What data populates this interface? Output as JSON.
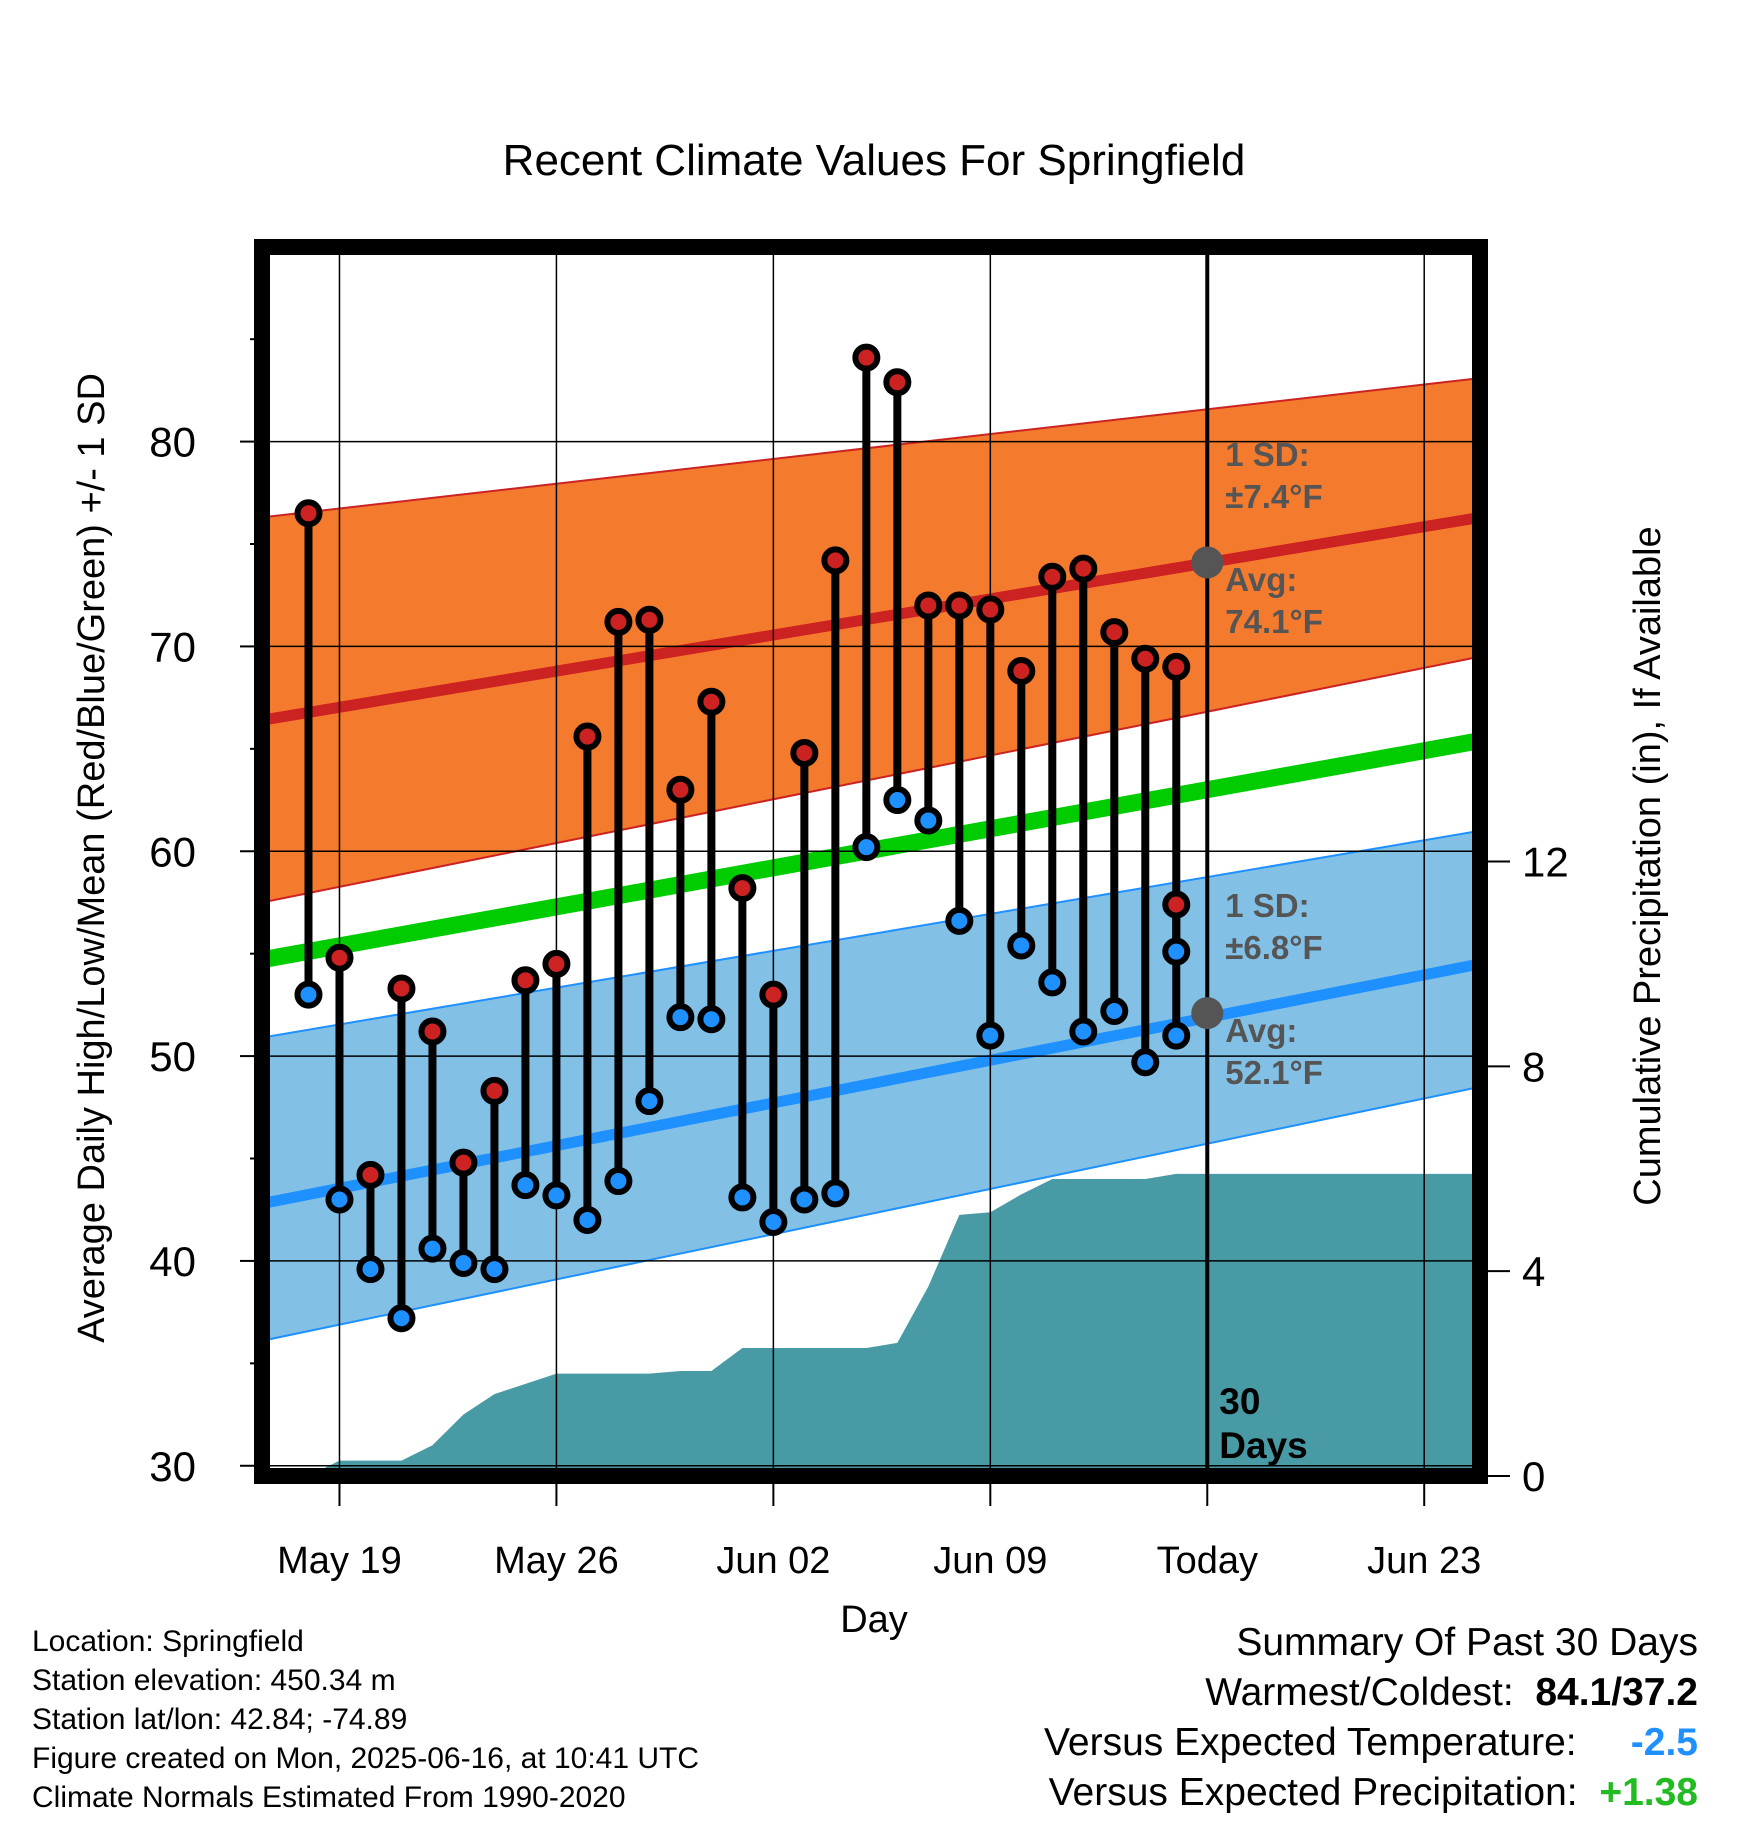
{
  "chart_data": {
    "type": "line",
    "title": "Recent Climate Values For Springfield",
    "xlabel": "Day",
    "ylabel": "Average Daily High/Low/Mean (Red/Blue/Green) +/- 1 SD",
    "y2label": "Cumulative Precipitation (in), If Available",
    "x_tick_labels": [
      "May 19",
      "May 26",
      "Jun 02",
      "Jun 09",
      "Today",
      "Jun 23"
    ],
    "x_tick_days": [
      2,
      9,
      16,
      23,
      30,
      37
    ],
    "xlim": [
      -0.5,
      38.8
    ],
    "ylim": [
      29.5,
      89.5
    ],
    "y_ticks": [
      30,
      40,
      50,
      60,
      70,
      80
    ],
    "y2lim": [
      0,
      24
    ],
    "y2_ticks": [
      0,
      4,
      8,
      12
    ],
    "grid": true,
    "today_day": 30,
    "today_marker_label": "30\nDays",
    "normals": {
      "high_avg": {
        "start": 66.4,
        "end": 76.3,
        "color": "#cc2222"
      },
      "high_sd_band": {
        "upper_start": 76.3,
        "upper_end": 83.1,
        "lower_start": 57.5,
        "lower_end": 69.5,
        "color": "#f47a2e"
      },
      "mean_avg": {
        "start": 54.7,
        "end": 65.4,
        "color": "#00cc00"
      },
      "low_avg": {
        "start": 42.8,
        "end": 54.5,
        "color": "#1e90ff"
      },
      "low_sd_band": {
        "upper_start": 50.9,
        "upper_end": 61.0,
        "lower_start": 36.1,
        "lower_end": 48.5,
        "color": "#82c0e6"
      }
    },
    "annotations": {
      "high": {
        "sd": "1 SD:",
        "sd_value": "±7.4°F",
        "avg": "Avg:",
        "avg_value": "74.1°F",
        "today_avg": 74.1
      },
      "low": {
        "sd": "1 SD:",
        "sd_value": "±6.8°F",
        "avg": "Avg:",
        "avg_value": "52.1°F",
        "today_avg": 52.1
      }
    },
    "series": [
      {
        "name": "High",
        "color": "#cc2222",
        "x": [
          1,
          2,
          3,
          4,
          5,
          6,
          7,
          8,
          9,
          10,
          11,
          12,
          13,
          14,
          15,
          16,
          17,
          18,
          19,
          20,
          21,
          22,
          23,
          24,
          25,
          26,
          27,
          28,
          29
        ],
        "values": [
          76.5,
          54.8,
          44.2,
          53.3,
          51.2,
          44.8,
          48.3,
          53.7,
          54.5,
          65.6,
          71.2,
          71.3,
          63.0,
          67.3,
          58.2,
          53.0,
          64.8,
          74.2,
          84.1,
          82.9,
          72.0,
          72.0,
          71.8,
          68.8,
          73.4,
          73.8,
          70.7,
          69.4,
          57.4
        ]
      },
      {
        "name": "Low",
        "color": "#1e90ff",
        "x": [
          1,
          2,
          3,
          4,
          5,
          6,
          7,
          8,
          9,
          10,
          11,
          12,
          13,
          14,
          15,
          16,
          17,
          18,
          19,
          20,
          21,
          22,
          23,
          24,
          25,
          26,
          27,
          28,
          29
        ],
        "values": [
          53.0,
          43.0,
          39.6,
          37.2,
          40.6,
          39.9,
          39.6,
          43.7,
          43.2,
          42.0,
          43.9,
          47.8,
          51.9,
          51.8,
          43.1,
          41.9,
          43.0,
          43.3,
          60.2,
          62.5,
          61.5,
          56.6,
          51.0,
          55.4,
          53.6,
          51.2,
          52.2,
          49.7,
          51.0
        ]
      },
      {
        "name": "Precipitation",
        "color": "#489ba4",
        "x": [
          0,
          1,
          2,
          3,
          4,
          5,
          6,
          7,
          8,
          9,
          10,
          11,
          12,
          13,
          14,
          15,
          16,
          17,
          18,
          19,
          20,
          21,
          22,
          23,
          24,
          25,
          26,
          27,
          28,
          29,
          30,
          38.8
        ],
        "values": [
          0.0,
          0.0,
          0.3,
          0.3,
          0.3,
          0.6,
          1.2,
          1.6,
          1.8,
          2.0,
          2.0,
          2.0,
          2.0,
          2.05,
          2.05,
          2.5,
          2.5,
          2.5,
          2.5,
          2.5,
          2.6,
          3.7,
          5.1,
          5.15,
          5.5,
          5.8,
          5.8,
          5.8,
          5.8,
          5.9,
          5.9,
          5.9
        ]
      }
    ],
    "extra_points": [
      {
        "day": 29,
        "high": 69.0,
        "low": 55.1
      }
    ]
  },
  "footer": {
    "location": "Location: Springfield",
    "elevation": "Station elevation: 450.34 m",
    "latlon": "Station lat/lon: 42.84; -74.89",
    "created": "Figure created on Mon, 2025-06-16, at 10:41 UTC",
    "normals": "Climate Normals Estimated From 1990-2020"
  },
  "summary": {
    "title": "Summary Of Past 30 Days",
    "warm_cold_label": "Warmest/Coldest:",
    "warm_cold_value": "84.1/37.2",
    "temp_label": "Versus Expected Temperature:",
    "temp_value": "-2.5",
    "temp_color": "#1e90ff",
    "precip_label": "Versus Expected Precipitation:",
    "precip_value": "+1.38",
    "precip_color": "#22bb22"
  }
}
